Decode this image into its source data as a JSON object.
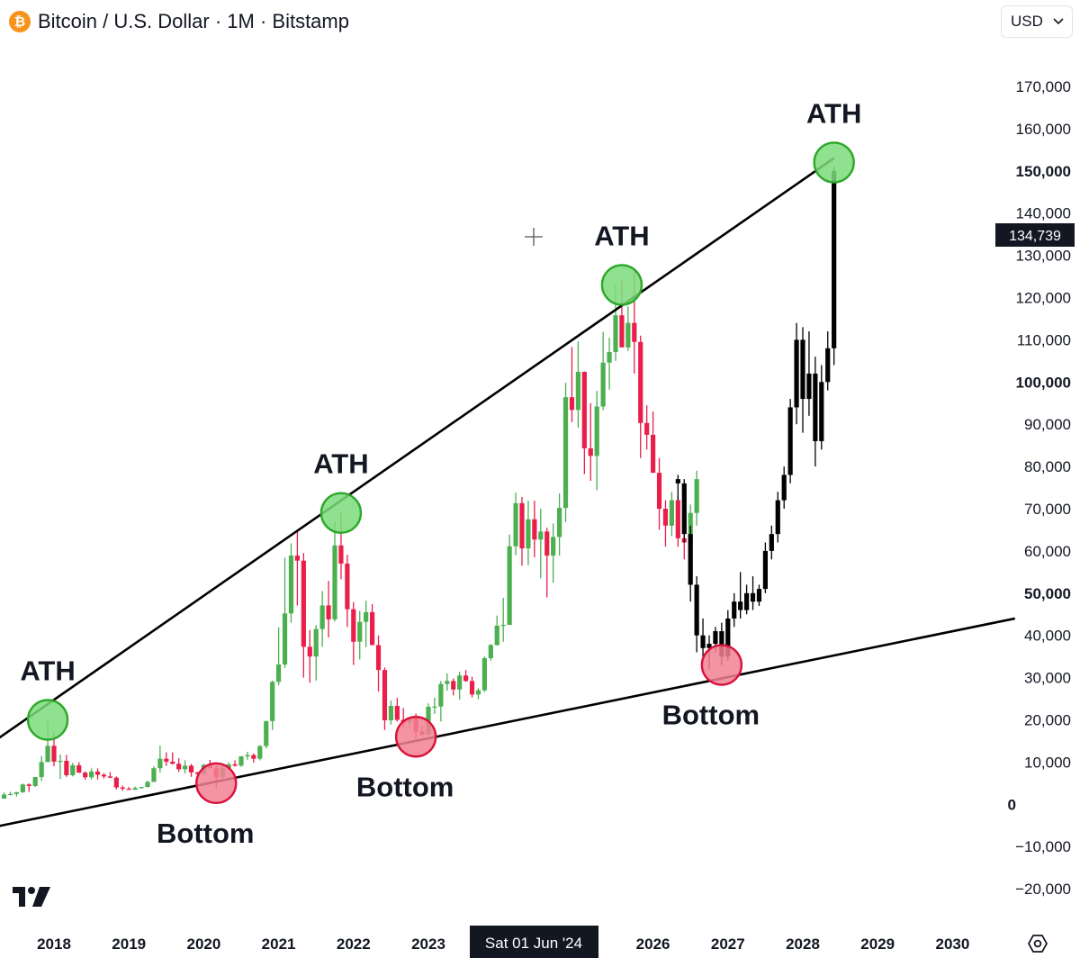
{
  "header": {
    "title": "Bitcoin / U.S. Dollar · 1M · Bitstamp",
    "icon": "bitcoin-icon",
    "icon_glyph": "₿"
  },
  "toolbar": {
    "currency": "USD"
  },
  "crosshair": {
    "date_label": "Sat 01 Jun '24",
    "price_label": "134,739",
    "price_value": 134739,
    "date_value": "2024-06-01"
  },
  "colors": {
    "up": "#4caf50",
    "down": "#e91e4a",
    "projection": "#000000",
    "ath_marker": "#7ddc7b",
    "bottom_marker": "#f28093",
    "trendline": "#000000"
  },
  "chart_data": {
    "type": "candlestick",
    "title": "Bitcoin / U.S. Dollar · 1M · Bitstamp",
    "ylim": [
      -25000,
      175000
    ],
    "xlim": [
      "2017-05-01",
      "2030-11-01"
    ],
    "yticks": [
      {
        "value": 170000,
        "label": "170,000",
        "bold": false
      },
      {
        "value": 160000,
        "label": "160,000",
        "bold": false
      },
      {
        "value": 150000,
        "label": "150,000",
        "bold": true
      },
      {
        "value": 140000,
        "label": "140,000",
        "bold": false
      },
      {
        "value": 130000,
        "label": "130,000",
        "bold": false
      },
      {
        "value": 120000,
        "label": "120,000",
        "bold": false
      },
      {
        "value": 110000,
        "label": "110,000",
        "bold": false
      },
      {
        "value": 100000,
        "label": "100,000",
        "bold": true
      },
      {
        "value": 90000,
        "label": "90,000",
        "bold": false
      },
      {
        "value": 80000,
        "label": "80,000",
        "bold": false
      },
      {
        "value": 70000,
        "label": "70,000",
        "bold": false
      },
      {
        "value": 60000,
        "label": "60,000",
        "bold": false
      },
      {
        "value": 50000,
        "label": "50,000",
        "bold": true
      },
      {
        "value": 40000,
        "label": "40,000",
        "bold": false
      },
      {
        "value": 30000,
        "label": "30,000",
        "bold": false
      },
      {
        "value": 20000,
        "label": "20,000",
        "bold": false
      },
      {
        "value": 10000,
        "label": "10,000",
        "bold": false
      },
      {
        "value": 0,
        "label": "0",
        "bold": true
      },
      {
        "value": -10000,
        "label": "−10,000",
        "bold": false
      },
      {
        "value": -20000,
        "label": "−20,000",
        "bold": false
      }
    ],
    "xticks": [
      {
        "date": "2018-01-01",
        "label": "2018"
      },
      {
        "date": "2019-01-01",
        "label": "2019"
      },
      {
        "date": "2020-01-01",
        "label": "2020"
      },
      {
        "date": "2021-01-01",
        "label": "2021"
      },
      {
        "date": "2022-01-01",
        "label": "2022"
      },
      {
        "date": "2023-01-01",
        "label": "2023"
      },
      {
        "date": "2026-01-01",
        "label": "2026"
      },
      {
        "date": "2027-01-01",
        "label": "2027"
      },
      {
        "date": "2028-01-01",
        "label": "2028"
      },
      {
        "date": "2029-01-01",
        "label": "2029"
      },
      {
        "date": "2030-01-01",
        "label": "2030"
      }
    ],
    "trendlines": [
      {
        "name": "upper",
        "points": [
          [
            "2017-03-01",
            14500
          ],
          [
            "2028-06-01",
            153000
          ]
        ]
      },
      {
        "name": "lower",
        "points": [
          [
            "2017-03-01",
            -5500
          ],
          [
            "2030-11-01",
            44000
          ]
        ]
      }
    ],
    "annotations": [
      {
        "kind": "ath",
        "date": "2017-12-01",
        "value": 20000,
        "label": "ATH"
      },
      {
        "kind": "ath",
        "date": "2021-11-01",
        "value": 69000,
        "label": "ATH"
      },
      {
        "kind": "ath",
        "date": "2025-08-01",
        "value": 123000,
        "label": "ATH"
      },
      {
        "kind": "ath",
        "date": "2028-06-01",
        "value": 152000,
        "label": "ATH"
      },
      {
        "kind": "bottom",
        "date": "2020-03-01",
        "value": 5000,
        "label": "Bottom"
      },
      {
        "kind": "bottom",
        "date": "2022-11-01",
        "value": 16000,
        "label": "Bottom"
      },
      {
        "kind": "bottom",
        "date": "2026-12-01",
        "value": 33000,
        "label": "Bottom"
      }
    ],
    "series": [
      {
        "name": "",
        "style": "candles",
        "start": "2017-05-01",
        "ohlc": [
          [
            1350,
            2800,
            1350,
            2300
          ],
          [
            2300,
            2950,
            2100,
            2450
          ],
          [
            2450,
            2950,
            1850,
            2850
          ],
          [
            2850,
            4900,
            2700,
            4700
          ],
          [
            4700,
            4950,
            2950,
            4350
          ],
          [
            4350,
            6450,
            4100,
            6450
          ],
          [
            6450,
            11400,
            5500,
            10000
          ],
          [
            10000,
            19700,
            10000,
            13850
          ],
          [
            13850,
            17200,
            9000,
            10100
          ],
          [
            10100,
            11800,
            6000,
            10300
          ],
          [
            10300,
            11700,
            6500,
            6900
          ],
          [
            6900,
            9800,
            6600,
            9250
          ],
          [
            9250,
            9990,
            7400,
            7500
          ],
          [
            7500,
            7800,
            5800,
            6400
          ],
          [
            6400,
            8500,
            5900,
            7750
          ],
          [
            7750,
            8500,
            5900,
            7000
          ],
          [
            7000,
            7400,
            6100,
            6600
          ],
          [
            6600,
            7600,
            6200,
            6300
          ],
          [
            6300,
            6600,
            3500,
            4000
          ],
          [
            4000,
            4400,
            3200,
            3700
          ],
          [
            3700,
            4100,
            3400,
            3450
          ],
          [
            3450,
            4200,
            3400,
            3850
          ],
          [
            3850,
            4100,
            3700,
            4100
          ],
          [
            4100,
            5600,
            4000,
            5300
          ],
          [
            5300,
            9000,
            5300,
            8550
          ],
          [
            8550,
            13850,
            7500,
            10800
          ],
          [
            10800,
            12300,
            9100,
            10100
          ],
          [
            10100,
            12300,
            9400,
            9600
          ],
          [
            9600,
            10900,
            7700,
            8300
          ],
          [
            8300,
            10400,
            7300,
            9150
          ],
          [
            9150,
            9550,
            6500,
            7550
          ],
          [
            7550,
            7700,
            6450,
            7200
          ],
          [
            7200,
            9600,
            6900,
            9350
          ],
          [
            9350,
            10500,
            8500,
            8550
          ],
          [
            8550,
            9200,
            3850,
            6400
          ],
          [
            6400,
            9450,
            6200,
            8650
          ],
          [
            8650,
            9950,
            8100,
            9450
          ],
          [
            9450,
            10400,
            8900,
            9150
          ],
          [
            9150,
            11400,
            8900,
            11350
          ],
          [
            11350,
            12450,
            10550,
            11650
          ],
          [
            11650,
            12050,
            9850,
            10800
          ],
          [
            10800,
            14000,
            10400,
            13800
          ],
          [
            13800,
            19800,
            13200,
            19700
          ],
          [
            19700,
            29300,
            17600,
            29000
          ],
          [
            29000,
            41900,
            28200,
            33100
          ],
          [
            33100,
            58400,
            32300,
            45200
          ],
          [
            45200,
            61800,
            43000,
            58900
          ],
          [
            58900,
            64800,
            47100,
            57700
          ],
          [
            57700,
            59500,
            30000,
            37300
          ],
          [
            37300,
            41300,
            28800,
            35000
          ],
          [
            35000,
            42400,
            29300,
            41500
          ],
          [
            41500,
            50500,
            37300,
            47100
          ],
          [
            47100,
            52900,
            39500,
            43800
          ],
          [
            43800,
            66900,
            43300,
            61300
          ],
          [
            61300,
            69000,
            53300,
            57000
          ],
          [
            57000,
            59100,
            42000,
            46200
          ],
          [
            46200,
            47900,
            33000,
            38500
          ],
          [
            38500,
            45800,
            34300,
            43200
          ],
          [
            43200,
            48200,
            37200,
            45500
          ],
          [
            45500,
            47400,
            37700,
            37700
          ],
          [
            37700,
            40000,
            26700,
            31800
          ],
          [
            31800,
            32400,
            17600,
            19900
          ],
          [
            19900,
            24600,
            18900,
            23300
          ],
          [
            23300,
            25200,
            19600,
            20000
          ],
          [
            20000,
            22800,
            18200,
            19400
          ],
          [
            19400,
            20400,
            18100,
            20500
          ],
          [
            20500,
            21500,
            15500,
            17200
          ],
          [
            17200,
            18400,
            16300,
            16500
          ],
          [
            16500,
            23900,
            16500,
            23100
          ],
          [
            23100,
            25250,
            21400,
            23150
          ],
          [
            23150,
            29200,
            19600,
            28500
          ],
          [
            28500,
            31000,
            26900,
            29200
          ],
          [
            29200,
            29800,
            25800,
            27200
          ],
          [
            27200,
            31400,
            24800,
            30500
          ],
          [
            30500,
            31800,
            29000,
            29200
          ],
          [
            29200,
            30200,
            25300,
            26000
          ],
          [
            26000,
            27500,
            24900,
            27000
          ],
          [
            27000,
            35000,
            26600,
            34600
          ],
          [
            34600,
            38000,
            34000,
            37700
          ],
          [
            37700,
            44700,
            37600,
            42300
          ],
          [
            42300,
            48900,
            38500,
            42500
          ],
          [
            42500,
            63900,
            42500,
            61100
          ],
          [
            61100,
            73800,
            59000,
            71300
          ],
          [
            71300,
            72800,
            56500,
            60600
          ],
          [
            60600,
            71900,
            56600,
            67500
          ],
          [
            67500,
            71900,
            58500,
            62700
          ],
          [
            62700,
            70000,
            53500,
            64600
          ],
          [
            64600,
            65500,
            49000,
            58900
          ],
          [
            58900,
            66500,
            52500,
            63300
          ],
          [
            63300,
            73600,
            58900,
            70200
          ],
          [
            70200,
            99800,
            66800,
            96400
          ],
          [
            96400,
            108300,
            90500,
            93400
          ],
          [
            93400,
            109600,
            89200,
            102400
          ],
          [
            102400,
            102500,
            78200,
            84300
          ],
          [
            84300,
            95000,
            76600,
            82500
          ],
          [
            82500,
            97900,
            74400,
            94200
          ],
          [
            94200,
            111900,
            93300,
            104600
          ],
          [
            104600,
            110500,
            98200,
            107100
          ],
          [
            107100,
            123200,
            105000,
            115800
          ],
          [
            115800,
            124100,
            110000,
            108200
          ],
          [
            108200,
            117900,
            107300,
            114000
          ],
          [
            114000,
            126200,
            102000,
            109500
          ],
          [
            109500,
            111000,
            82000,
            90300
          ],
          [
            90300,
            94500,
            84000,
            87500
          ],
          [
            87500,
            93000,
            80000,
            78500
          ],
          [
            78500,
            82000,
            65000,
            70000
          ],
          [
            70000,
            72000,
            61000,
            66000
          ],
          [
            66000,
            74000,
            63500,
            72000
          ],
          [
            72000,
            73000,
            61000,
            63000
          ],
          [
            63000,
            66000,
            58000,
            62000
          ],
          [
            62000,
            71000,
            60000,
            69000
          ],
          [
            69000,
            79000,
            66000,
            77000
          ]
        ]
      },
      {
        "name": "",
        "style": "projection",
        "start": "2026-05-01",
        "ohlc": [
          [
            77000,
            78000,
            72000,
            76000
          ],
          [
            76000,
            77000,
            62000,
            64000
          ],
          [
            64000,
            66000,
            48000,
            52000
          ],
          [
            52000,
            54000,
            36000,
            40000
          ],
          [
            40000,
            44000,
            35000,
            37000
          ],
          [
            37000,
            40000,
            32000,
            38000
          ],
          [
            38000,
            42000,
            36000,
            41000
          ],
          [
            41000,
            43000,
            33000,
            35000
          ],
          [
            35000,
            46000,
            34000,
            44000
          ],
          [
            44000,
            50000,
            42000,
            48000
          ],
          [
            48000,
            55000,
            44000,
            46000
          ],
          [
            46000,
            52000,
            45000,
            50000
          ],
          [
            50000,
            54000,
            46000,
            48000
          ],
          [
            48000,
            52000,
            47000,
            51000
          ],
          [
            51000,
            62000,
            50000,
            60000
          ],
          [
            60000,
            66000,
            58000,
            64000
          ],
          [
            64000,
            74000,
            62000,
            72000
          ],
          [
            72000,
            80000,
            70000,
            78000
          ],
          [
            78000,
            96000,
            76000,
            94000
          ],
          [
            94000,
            114000,
            90000,
            110000
          ],
          [
            110000,
            113000,
            88000,
            96000
          ],
          [
            96000,
            112000,
            92000,
            102000
          ],
          [
            102000,
            106000,
            80000,
            86000
          ],
          [
            86000,
            104000,
            84000,
            100000
          ],
          [
            100000,
            112000,
            98000,
            108000
          ],
          [
            108000,
            151000,
            104000,
            150000
          ]
        ]
      }
    ]
  }
}
